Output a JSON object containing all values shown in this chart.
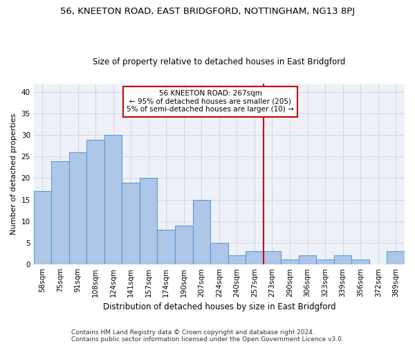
{
  "title1": "56, KNEETON ROAD, EAST BRIDGFORD, NOTTINGHAM, NG13 8PJ",
  "title2": "Size of property relative to detached houses in East Bridgford",
  "xlabel": "Distribution of detached houses by size in East Bridgford",
  "ylabel": "Number of detached properties",
  "footer1": "Contains HM Land Registry data © Crown copyright and database right 2024.",
  "footer2": "Contains public sector information licensed under the Open Government Licence v3.0.",
  "categories": [
    "58sqm",
    "75sqm",
    "91sqm",
    "108sqm",
    "124sqm",
    "141sqm",
    "157sqm",
    "174sqm",
    "190sqm",
    "207sqm",
    "224sqm",
    "240sqm",
    "257sqm",
    "273sqm",
    "290sqm",
    "306sqm",
    "323sqm",
    "339sqm",
    "356sqm",
    "372sqm",
    "389sqm"
  ],
  "values": [
    17,
    24,
    26,
    29,
    30,
    19,
    20,
    8,
    9,
    15,
    5,
    2,
    3,
    3,
    1,
    2,
    1,
    2,
    1,
    0,
    3
  ],
  "bar_color": "#aec6e8",
  "bar_edge_color": "#5b9bd5",
  "grid_color": "#d0d8e8",
  "background_color": "#eef2f8",
  "vline_x": 12.5,
  "vline_color": "#cc0000",
  "annotation_title": "56 KNEETON ROAD: 267sqm",
  "annotation_line1": "← 95% of detached houses are smaller (205)",
  "annotation_line2": "5% of semi-detached houses are larger (10) →",
  "annotation_box_color": "#cc0000",
  "ylim": [
    0,
    42
  ],
  "yticks": [
    0,
    5,
    10,
    15,
    20,
    25,
    30,
    35,
    40
  ],
  "title1_fontsize": 9.5,
  "title2_fontsize": 8.5,
  "ylabel_fontsize": 8,
  "xlabel_fontsize": 8.5,
  "tick_fontsize": 7.5,
  "footer_fontsize": 6.5
}
